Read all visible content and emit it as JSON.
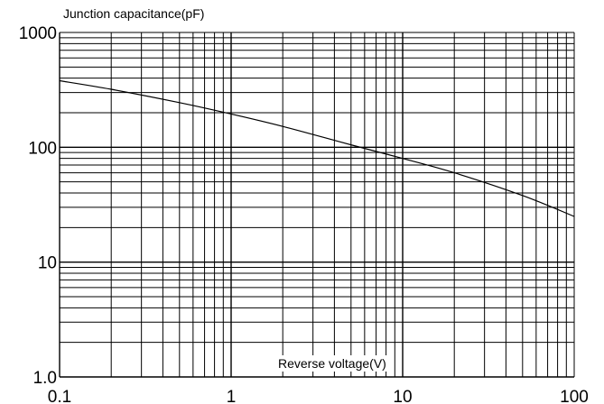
{
  "chart_data": {
    "type": "line",
    "title": "",
    "ylabel": "Junction capacitance(pF)",
    "xlabel": "Reverse voltage(V)",
    "xscale": "log",
    "yscale": "log",
    "xlim": [
      0.1,
      100
    ],
    "ylim": [
      1,
      1000
    ],
    "grid": true,
    "x_ticks": [
      {
        "value": 0.1,
        "label": "0.1"
      },
      {
        "value": 1,
        "label": "1"
      },
      {
        "value": 10,
        "label": "10"
      },
      {
        "value": 100,
        "label": "100"
      }
    ],
    "y_ticks": [
      {
        "value": 1,
        "label": "1.0"
      },
      {
        "value": 10,
        "label": "10"
      },
      {
        "value": 100,
        "label": "100"
      },
      {
        "value": 1000,
        "label": "1000"
      }
    ],
    "series": [
      {
        "x": [
          0.1,
          0.2,
          0.5,
          1,
          2,
          5,
          10,
          20,
          50,
          100
        ],
        "y": [
          380,
          320,
          245,
          195,
          152,
          105,
          80,
          60,
          38,
          25
        ]
      }
    ]
  }
}
